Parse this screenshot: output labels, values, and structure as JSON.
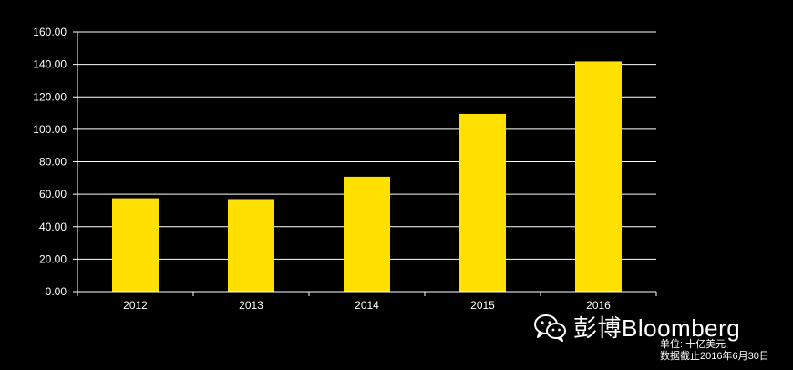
{
  "chart_data": {
    "type": "bar",
    "categories": [
      "2012",
      "2013",
      "2014",
      "2015",
      "2016"
    ],
    "values": [
      57.5,
      57.0,
      70.8,
      109.5,
      141.8
    ],
    "ylim": [
      0,
      160
    ],
    "yticks": [
      "0.00",
      "20.00",
      "40.00",
      "60.00",
      "80.00",
      "100.00",
      "120.00",
      "140.00",
      "160.00"
    ],
    "title": "",
    "xlabel": "",
    "ylabel": "",
    "grid": true,
    "bar_color": "#FFE000",
    "background": "#000000"
  },
  "watermark": {
    "text": "彭博Bloomberg",
    "icon": "wechat-icon"
  },
  "notes": {
    "unit": "单位: 十亿美元",
    "date": "数据截止2016年6月30日"
  }
}
